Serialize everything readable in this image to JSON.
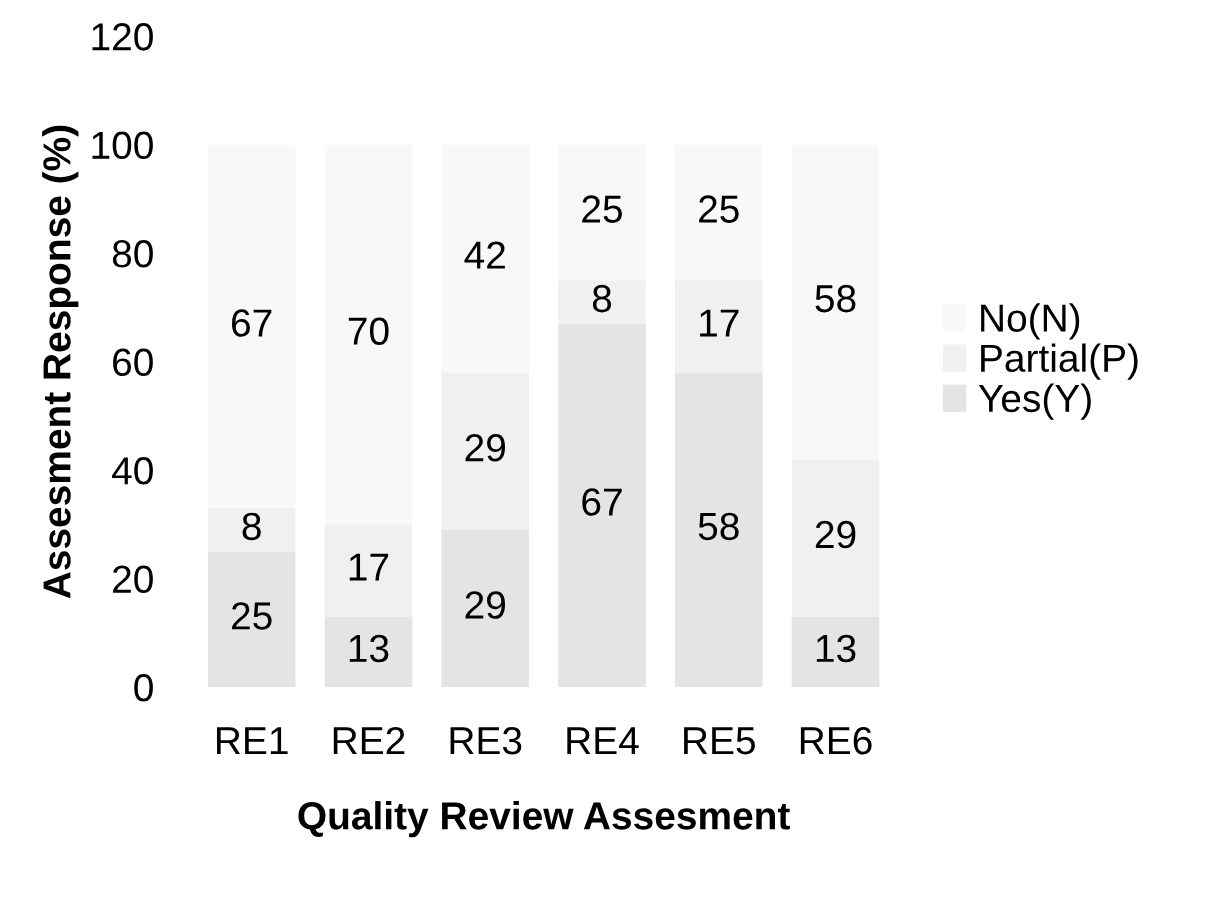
{
  "chart_data": {
    "type": "bar",
    "stacked": true,
    "xlabel": "Quality Review Assesment",
    "ylabel": "Assesment Response (%)",
    "categories": [
      "RE1",
      "RE2",
      "RE3",
      "RE4",
      "RE5",
      "RE6"
    ],
    "series": [
      {
        "name": "Yes(Y)",
        "color": "#e4e4e4",
        "values": [
          25,
          13,
          29,
          67,
          58,
          13
        ]
      },
      {
        "name": "Partial(P)",
        "color": "#f0f0f0",
        "values": [
          8,
          17,
          29,
          8,
          17,
          29
        ]
      },
      {
        "name": "No(N)",
        "color": "#f8f8f8",
        "values": [
          67,
          70,
          42,
          25,
          25,
          58
        ]
      }
    ],
    "ylim": [
      0,
      120
    ],
    "yticks": [
      0,
      20,
      40,
      60,
      80,
      100,
      120
    ],
    "data_labels": true,
    "legend": "right",
    "grid": false
  }
}
